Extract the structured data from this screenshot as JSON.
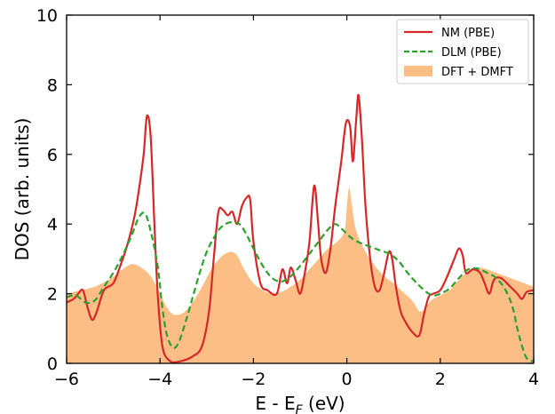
{
  "chart_data": {
    "type": "line",
    "xlabel": "E - E",
    "xlabel_sub": "F",
    "xlabel_unit": " (eV)",
    "ylabel": "DOS (arb. units)",
    "xlim": [
      -6,
      4
    ],
    "ylim": [
      0,
      10
    ],
    "xticks": [
      -6,
      -4,
      -2,
      0,
      2,
      4
    ],
    "yticks": [
      0,
      2,
      4,
      6,
      8,
      10
    ],
    "grid": false,
    "legend_position": "top-right",
    "series": [
      {
        "name": "NM (PBE)",
        "style": "solid",
        "color": "#d62728",
        "points": [
          [
            -6.0,
            1.75
          ],
          [
            -5.85,
            1.85
          ],
          [
            -5.75,
            2.0
          ],
          [
            -5.65,
            2.1
          ],
          [
            -5.55,
            1.6
          ],
          [
            -5.45,
            1.25
          ],
          [
            -5.35,
            1.5
          ],
          [
            -5.2,
            2.1
          ],
          [
            -5.0,
            2.3
          ],
          [
            -4.85,
            2.8
          ],
          [
            -4.7,
            3.4
          ],
          [
            -4.55,
            4.2
          ],
          [
            -4.45,
            5.0
          ],
          [
            -4.35,
            6.0
          ],
          [
            -4.28,
            7.1
          ],
          [
            -4.2,
            6.5
          ],
          [
            -4.12,
            4.0
          ],
          [
            -4.05,
            2.0
          ],
          [
            -3.95,
            0.5
          ],
          [
            -3.8,
            0.08
          ],
          [
            -3.6,
            0.05
          ],
          [
            -3.3,
            0.2
          ],
          [
            -3.1,
            0.5
          ],
          [
            -2.95,
            1.5
          ],
          [
            -2.85,
            3.0
          ],
          [
            -2.75,
            4.35
          ],
          [
            -2.65,
            4.4
          ],
          [
            -2.55,
            4.25
          ],
          [
            -2.45,
            4.35
          ],
          [
            -2.35,
            4.0
          ],
          [
            -2.25,
            4.5
          ],
          [
            -2.15,
            4.75
          ],
          [
            -2.07,
            4.7
          ],
          [
            -2.0,
            3.5
          ],
          [
            -1.85,
            2.3
          ],
          [
            -1.7,
            2.1
          ],
          [
            -1.5,
            2.0
          ],
          [
            -1.38,
            2.7
          ],
          [
            -1.28,
            2.3
          ],
          [
            -1.2,
            2.75
          ],
          [
            -1.1,
            2.4
          ],
          [
            -1.0,
            2.0
          ],
          [
            -0.9,
            2.6
          ],
          [
            -0.8,
            3.5
          ],
          [
            -0.7,
            5.1
          ],
          [
            -0.62,
            4.1
          ],
          [
            -0.55,
            3.0
          ],
          [
            -0.45,
            2.6
          ],
          [
            -0.35,
            3.3
          ],
          [
            -0.25,
            4.5
          ],
          [
            -0.12,
            5.8
          ],
          [
            -0.02,
            6.9
          ],
          [
            0.07,
            6.8
          ],
          [
            0.13,
            5.8
          ],
          [
            0.2,
            7.0
          ],
          [
            0.25,
            7.7
          ],
          [
            0.32,
            6.5
          ],
          [
            0.4,
            4.5
          ],
          [
            0.5,
            3.0
          ],
          [
            0.6,
            2.2
          ],
          [
            0.7,
            2.1
          ],
          [
            0.8,
            2.6
          ],
          [
            0.9,
            3.2
          ],
          [
            0.97,
            3.0
          ],
          [
            1.05,
            2.2
          ],
          [
            1.15,
            1.5
          ],
          [
            1.25,
            1.2
          ],
          [
            1.4,
            0.9
          ],
          [
            1.55,
            0.8
          ],
          [
            1.65,
            1.4
          ],
          [
            1.75,
            1.9
          ],
          [
            1.85,
            2.0
          ],
          [
            2.0,
            2.1
          ],
          [
            2.15,
            2.5
          ],
          [
            2.3,
            3.0
          ],
          [
            2.4,
            3.3
          ],
          [
            2.48,
            3.1
          ],
          [
            2.55,
            2.6
          ],
          [
            2.7,
            2.7
          ],
          [
            2.85,
            2.6
          ],
          [
            2.95,
            2.3
          ],
          [
            3.05,
            2.0
          ],
          [
            3.15,
            2.4
          ],
          [
            3.3,
            2.45
          ],
          [
            3.5,
            2.2
          ],
          [
            3.65,
            2.0
          ],
          [
            3.75,
            1.85
          ],
          [
            3.85,
            2.05
          ],
          [
            4.0,
            2.1
          ]
        ]
      },
      {
        "name": "DLM (PBE)",
        "style": "dashed",
        "color": "#2ca02c",
        "points": [
          [
            -6.0,
            1.9
          ],
          [
            -5.8,
            1.95
          ],
          [
            -5.6,
            1.75
          ],
          [
            -5.4,
            1.8
          ],
          [
            -5.2,
            2.2
          ],
          [
            -5.0,
            2.6
          ],
          [
            -4.8,
            3.1
          ],
          [
            -4.6,
            3.7
          ],
          [
            -4.45,
            4.2
          ],
          [
            -4.32,
            4.3
          ],
          [
            -4.2,
            3.8
          ],
          [
            -4.05,
            2.8
          ],
          [
            -3.95,
            1.6
          ],
          [
            -3.85,
            0.8
          ],
          [
            -3.72,
            0.45
          ],
          [
            -3.6,
            0.6
          ],
          [
            -3.45,
            1.2
          ],
          [
            -3.3,
            1.9
          ],
          [
            -3.15,
            2.6
          ],
          [
            -3.0,
            3.2
          ],
          [
            -2.85,
            3.6
          ],
          [
            -2.7,
            3.9
          ],
          [
            -2.5,
            4.05
          ],
          [
            -2.3,
            4.0
          ],
          [
            -2.15,
            3.7
          ],
          [
            -2.0,
            3.3
          ],
          [
            -1.8,
            2.8
          ],
          [
            -1.6,
            2.45
          ],
          [
            -1.4,
            2.35
          ],
          [
            -1.2,
            2.5
          ],
          [
            -1.0,
            2.8
          ],
          [
            -0.8,
            3.15
          ],
          [
            -0.6,
            3.5
          ],
          [
            -0.4,
            3.85
          ],
          [
            -0.25,
            4.0
          ],
          [
            -0.1,
            3.85
          ],
          [
            0.1,
            3.6
          ],
          [
            0.3,
            3.45
          ],
          [
            0.5,
            3.35
          ],
          [
            0.7,
            3.25
          ],
          [
            0.9,
            3.15
          ],
          [
            1.1,
            2.95
          ],
          [
            1.3,
            2.6
          ],
          [
            1.5,
            2.3
          ],
          [
            1.7,
            2.05
          ],
          [
            1.85,
            1.95
          ],
          [
            2.0,
            2.0
          ],
          [
            2.2,
            2.15
          ],
          [
            2.4,
            2.45
          ],
          [
            2.6,
            2.7
          ],
          [
            2.8,
            2.72
          ],
          [
            3.0,
            2.6
          ],
          [
            3.2,
            2.45
          ],
          [
            3.4,
            2.1
          ],
          [
            3.55,
            1.6
          ],
          [
            3.65,
            1.0
          ],
          [
            3.75,
            0.5
          ],
          [
            3.85,
            0.15
          ],
          [
            4.0,
            0.05
          ]
        ]
      },
      {
        "name": "DFT + DMFT",
        "style": "filled",
        "color": "#fdbe85",
        "points": [
          [
            -6.0,
            2.0
          ],
          [
            -5.7,
            2.1
          ],
          [
            -5.4,
            2.2
          ],
          [
            -5.1,
            2.4
          ],
          [
            -4.8,
            2.7
          ],
          [
            -4.6,
            2.85
          ],
          [
            -4.4,
            2.75
          ],
          [
            -4.2,
            2.5
          ],
          [
            -4.0,
            2.0
          ],
          [
            -3.85,
            1.6
          ],
          [
            -3.7,
            1.4
          ],
          [
            -3.5,
            1.45
          ],
          [
            -3.3,
            1.75
          ],
          [
            -3.1,
            2.2
          ],
          [
            -2.9,
            2.7
          ],
          [
            -2.7,
            3.05
          ],
          [
            -2.5,
            3.2
          ],
          [
            -2.35,
            3.1
          ],
          [
            -2.2,
            2.7
          ],
          [
            -2.0,
            2.3
          ],
          [
            -1.8,
            2.1
          ],
          [
            -1.6,
            2.0
          ],
          [
            -1.4,
            2.05
          ],
          [
            -1.2,
            2.2
          ],
          [
            -1.0,
            2.4
          ],
          [
            -0.8,
            2.7
          ],
          [
            -0.6,
            3.0
          ],
          [
            -0.4,
            3.3
          ],
          [
            -0.2,
            3.5
          ],
          [
            -0.05,
            3.8
          ],
          [
            0.0,
            4.5
          ],
          [
            0.05,
            5.05
          ],
          [
            0.1,
            4.6
          ],
          [
            0.2,
            3.8
          ],
          [
            0.4,
            3.2
          ],
          [
            0.6,
            2.8
          ],
          [
            0.8,
            2.5
          ],
          [
            1.0,
            2.3
          ],
          [
            1.2,
            2.05
          ],
          [
            1.4,
            1.8
          ],
          [
            1.55,
            1.5
          ],
          [
            1.65,
            1.55
          ],
          [
            1.8,
            1.8
          ],
          [
            2.0,
            1.95
          ],
          [
            2.2,
            2.1
          ],
          [
            2.4,
            2.4
          ],
          [
            2.6,
            2.65
          ],
          [
            2.8,
            2.75
          ],
          [
            3.0,
            2.7
          ],
          [
            3.2,
            2.6
          ],
          [
            3.4,
            2.5
          ],
          [
            3.6,
            2.4
          ],
          [
            3.8,
            2.3
          ],
          [
            4.0,
            2.2
          ]
        ]
      }
    ]
  }
}
